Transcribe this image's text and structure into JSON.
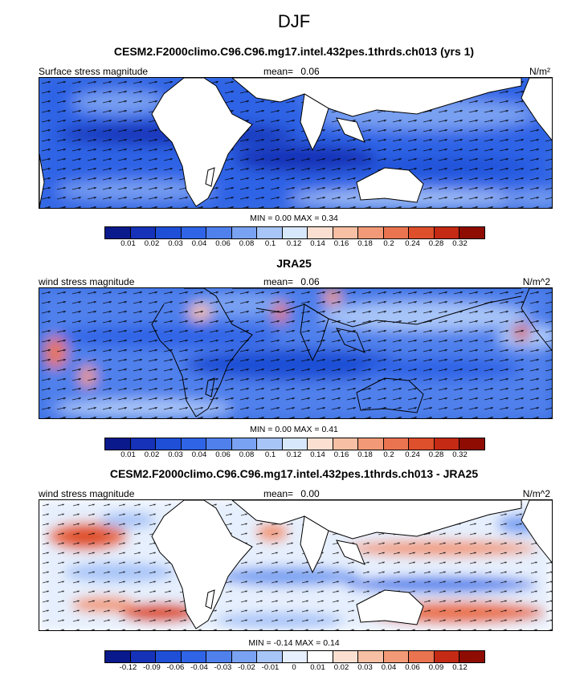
{
  "figure": {
    "title": "DJF"
  },
  "chart_data": [
    {
      "type": "heatmap",
      "title": "CESM2.F2000climo.C96.C96.mg17.intel.432pes.1thrds.ch013 (yrs 1)",
      "left_label": "Surface stress magnitude",
      "mean_label": "mean=",
      "mean_value": "0.06",
      "units": "N/m²",
      "min_value": "0.00",
      "max_value": "0.34",
      "colorbar": {
        "levels": [
          "0.01",
          "0.02",
          "0.03",
          "0.04",
          "0.06",
          "0.08",
          "0.1",
          "0.12",
          "0.14",
          "0.16",
          "0.18",
          "0.2",
          "0.24",
          "0.28",
          "0.32"
        ],
        "colors": [
          "#0a1a8c",
          "#1532b8",
          "#1f4fd6",
          "#2f64e6",
          "#4f80ec",
          "#7aa2f2",
          "#a8c5f8",
          "#d8e8fc",
          "#fbe0d2",
          "#f7bfa3",
          "#f29a77",
          "#ea7450",
          "#de4f2c",
          "#c42a14",
          "#8e0c02"
        ]
      }
    },
    {
      "type": "heatmap",
      "title": "JRA25",
      "left_label": "wind stress magnitude",
      "mean_label": "mean=",
      "mean_value": "0.06",
      "units": "N/m^2",
      "min_value": "0.00",
      "max_value": "0.41",
      "colorbar": {
        "levels": [
          "0.01",
          "0.02",
          "0.03",
          "0.04",
          "0.06",
          "0.08",
          "0.1",
          "0.12",
          "0.14",
          "0.16",
          "0.18",
          "0.2",
          "0.24",
          "0.28",
          "0.32"
        ],
        "colors": [
          "#0a1a8c",
          "#1532b8",
          "#1f4fd6",
          "#2f64e6",
          "#4f80ec",
          "#7aa2f2",
          "#a8c5f8",
          "#d8e8fc",
          "#fbe0d2",
          "#f7bfa3",
          "#f29a77",
          "#ea7450",
          "#de4f2c",
          "#c42a14",
          "#8e0c02"
        ]
      }
    },
    {
      "type": "heatmap",
      "title": "CESM2.F2000climo.C96.C96.mg17.intel.432pes.1thrds.ch013 - JRA25",
      "left_label": "wind stress magnitude",
      "mean_label": "mean=",
      "mean_value": "0.00",
      "units": "N/m^2",
      "min_value": "-0.14",
      "max_value": "0.14",
      "colorbar": {
        "levels": [
          "-0.12",
          "-0.09",
          "-0.06",
          "-0.04",
          "-0.03",
          "-0.02",
          "-0.01",
          "0",
          "0.01",
          "0.02",
          "0.03",
          "0.04",
          "0.06",
          "0.09",
          "0.12"
        ],
        "colors": [
          "#0a1a8c",
          "#1532b8",
          "#1f4fd6",
          "#2f64e6",
          "#4f80ec",
          "#7aa2f2",
          "#a8c5f8",
          "#e6effd",
          "#ffffff",
          "#fbe0d2",
          "#f7bfa3",
          "#f29a77",
          "#ea7450",
          "#c42a14",
          "#8e0c02"
        ]
      }
    }
  ]
}
